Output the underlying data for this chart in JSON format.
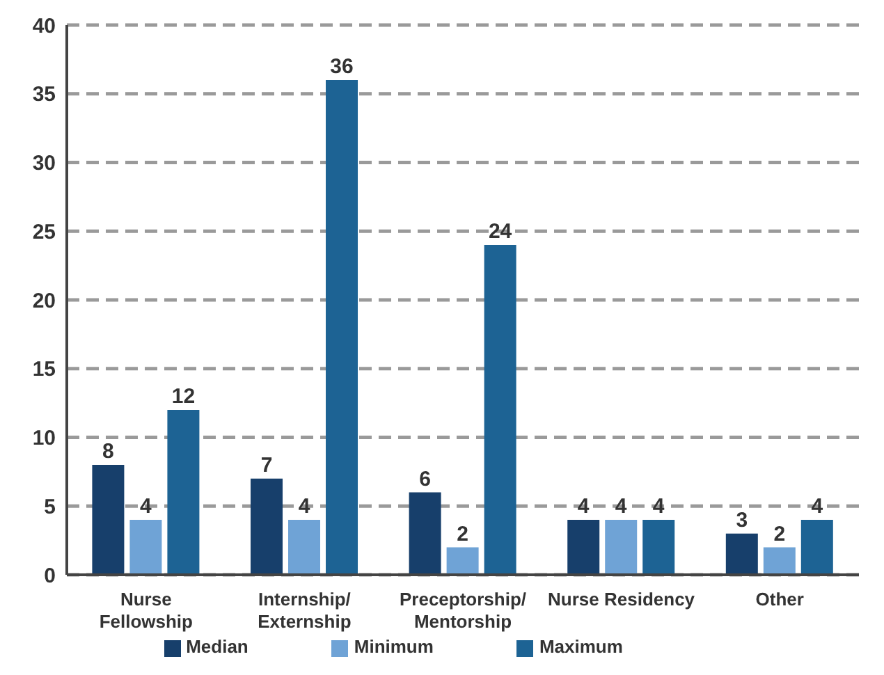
{
  "chart_data": {
    "type": "bar",
    "categories": [
      "Nurse\nFellowship",
      "Internship/\nExternship",
      "Preceptorship/\nMentorship",
      "Nurse Residency",
      "Other"
    ],
    "series": [
      {
        "name": "Median",
        "color": "#173f6b",
        "values": [
          8,
          7,
          6,
          4,
          3
        ]
      },
      {
        "name": "Minimum",
        "color": "#6fa3d6",
        "values": [
          4,
          4,
          2,
          4,
          2
        ]
      },
      {
        "name": "Maximum",
        "color": "#1d6394",
        "values": [
          12,
          36,
          24,
          4,
          4
        ]
      }
    ],
    "ylim": [
      0,
      40
    ],
    "yticks": [
      0,
      5,
      10,
      15,
      20,
      25,
      30,
      35,
      40
    ],
    "grid": "y",
    "legend": "bottom",
    "data_labels": true
  }
}
